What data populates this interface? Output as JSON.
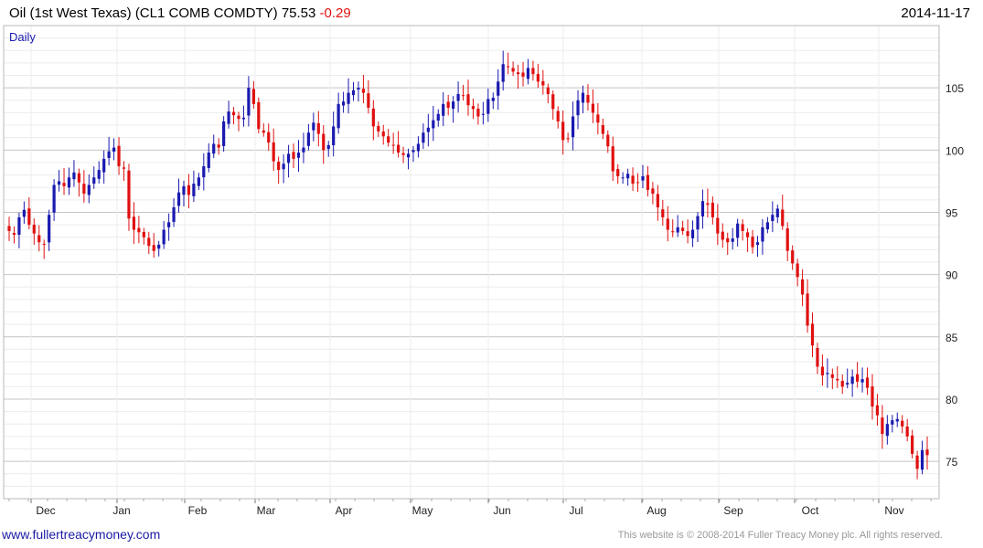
{
  "header": {
    "title": "Oil (1st West Texas) (CL1 COMB COMDTY) 75.53",
    "change": "-0.29",
    "date": "2014-11-17"
  },
  "footer": {
    "url": "www.fullertreacymoney.com",
    "copyright": "This website is © 2008-2014 Fuller Treacy Money plc. All rights reserved."
  },
  "chart_data": {
    "type": "candlestick",
    "period_label": "Daily",
    "ylim": [
      72,
      110
    ],
    "yticks": [
      75,
      80,
      85,
      90,
      95,
      100,
      105
    ],
    "month_labels": [
      "Dec",
      "Jan",
      "Feb",
      "Mar",
      "Apr",
      "May",
      "Jun",
      "Jul",
      "Aug",
      "Sep",
      "Oct",
      "Nov"
    ],
    "grid": true,
    "up_color": "#1a1ab0",
    "down_color": "#e01010",
    "approx_closes": [
      93.5,
      93.2,
      94.6,
      95.2,
      94.0,
      93.3,
      92.6,
      92.4,
      94.8,
      97.2,
      97.5,
      97.1,
      97.8,
      98.2,
      97.4,
      96.5,
      97.2,
      97.8,
      98.4,
      99.3,
      99.9,
      100.2,
      98.7,
      98.5,
      94.5,
      93.6,
      93.4,
      93.0,
      92.3,
      91.9,
      92.4,
      93.6,
      94.2,
      95.4,
      96.6,
      97.1,
      96.4,
      97.3,
      97.8,
      98.7,
      99.8,
      100.5,
      100.2,
      102.3,
      103.1,
      102.8,
      102.5,
      102.6,
      105.0,
      103.7,
      101.7,
      101.4,
      100.6,
      99.1,
      98.4,
      98.9,
      99.7,
      99.3,
      99.8,
      100.2,
      101.4,
      102.2,
      101.3,
      100.0,
      100.4,
      101.9,
      103.7,
      103.9,
      104.6,
      104.8,
      105.0,
      104.6,
      103.4,
      101.9,
      101.5,
      101.1,
      100.6,
      100.4,
      99.8,
      99.6,
      99.7,
      100.0,
      100.5,
      101.4,
      101.8,
      102.4,
      102.9,
      103.7,
      103.4,
      103.9,
      104.5,
      104.4,
      103.6,
      103.3,
      102.7,
      102.9,
      104.1,
      104.2,
      105.5,
      106.9,
      106.7,
      106.3,
      106.1,
      105.9,
      106.6,
      106.1,
      105.5,
      105.2,
      104.5,
      103.3,
      102.3,
      100.8,
      100.9,
      102.7,
      104.0,
      104.6,
      103.8,
      103.0,
      102.2,
      101.3,
      100.3,
      98.3,
      97.9,
      97.8,
      98.1,
      97.3,
      97.4,
      97.9,
      96.8,
      96.5,
      95.4,
      94.6,
      93.6,
      93.4,
      93.8,
      93.5,
      93.1,
      93.6,
      94.7,
      95.9,
      95.6,
      94.6,
      93.3,
      92.8,
      92.6,
      92.9,
      94.1,
      93.5,
      93.0,
      92.2,
      92.6,
      93.8,
      94.2,
      94.8,
      95.3,
      93.9,
      91.9,
      90.9,
      89.8,
      88.4,
      85.9,
      84.3,
      82.6,
      81.9,
      82.1,
      81.7,
      81.5,
      81.0,
      81.3,
      81.8,
      81.4,
      81.6,
      80.9,
      79.4,
      78.7,
      77.2,
      78.0,
      78.3,
      78.4,
      77.8,
      77.0,
      75.6,
      74.4,
      75.9,
      75.5
    ]
  }
}
